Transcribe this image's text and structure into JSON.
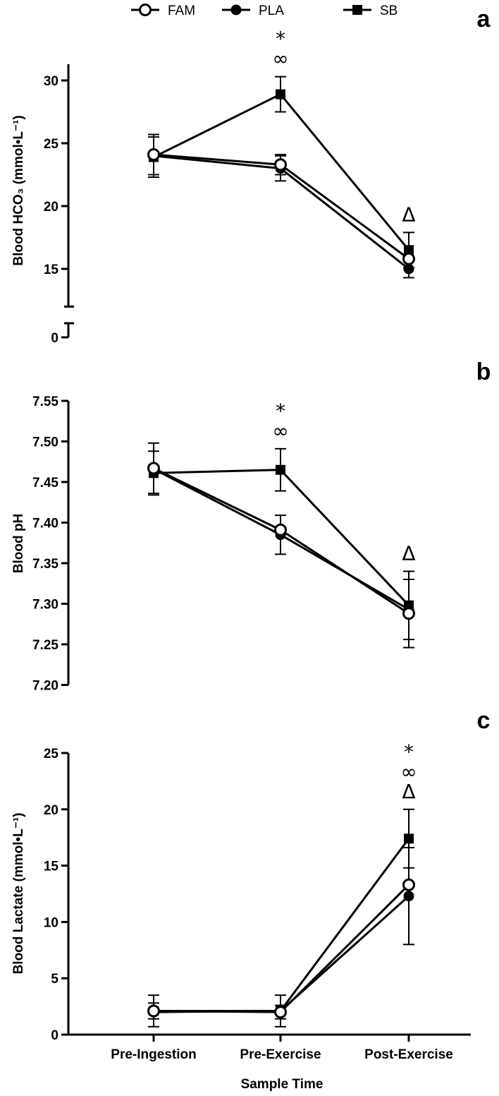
{
  "legend": [
    {
      "label": "FAM",
      "marker": "open-circle"
    },
    {
      "label": "PLA",
      "marker": "filled-circle"
    },
    {
      "label": "SB",
      "marker": "filled-square"
    }
  ],
  "xlabel": "Sample Time",
  "chart_data": [
    {
      "type": "line",
      "panel": "a",
      "ylabel": "Blood HCO₃ (mmol•L⁻¹)",
      "ylim": [
        0,
        32
      ],
      "axis_break": [
        2,
        12
      ],
      "yticks": [
        0,
        15,
        20,
        25,
        30
      ],
      "categories": [
        "Pre-Ingestion",
        "Pre-Exercise",
        "Post-Exercise"
      ],
      "series": [
        {
          "name": "FAM",
          "values": [
            24.1,
            23.3,
            15.8
          ],
          "errors": [
            1.6,
            0.8,
            0.0
          ]
        },
        {
          "name": "PLA",
          "values": [
            24.0,
            23.0,
            15.0
          ],
          "errors": [
            0.0,
            1.0,
            0.7
          ]
        },
        {
          "name": "SB",
          "values": [
            23.9,
            28.9,
            16.5
          ],
          "errors": [
            1.6,
            1.4,
            1.4
          ]
        }
      ],
      "annotations": [
        {
          "category": "Pre-Exercise",
          "symbols": [
            "*",
            "∞"
          ]
        },
        {
          "category": "Post-Exercise",
          "symbols": [
            "Δ"
          ]
        }
      ]
    },
    {
      "type": "line",
      "panel": "b",
      "ylabel": "Blood pH",
      "ylim": [
        7.2,
        7.55
      ],
      "yticks": [
        "7.20",
        "7.25",
        "7.30",
        "7.35",
        "7.40",
        "7.45",
        "7.50",
        "7.55"
      ],
      "categories": [
        "Pre-Ingestion",
        "Pre-Exercise",
        "Post-Exercise"
      ],
      "series": [
        {
          "name": "FAM",
          "values": [
            7.467,
            7.391,
            7.288
          ],
          "errors": [
            0.031,
            0.0,
            0.042
          ]
        },
        {
          "name": "PLA",
          "values": [
            7.466,
            7.385,
            7.293
          ],
          "errors": [
            0.0,
            0.024,
            0.0
          ]
        },
        {
          "name": "SB",
          "values": [
            7.461,
            7.465,
            7.298
          ],
          "errors": [
            0.027,
            0.026,
            0.042
          ]
        }
      ],
      "annotations": [
        {
          "category": "Pre-Exercise",
          "symbols": [
            "*",
            "∞"
          ]
        },
        {
          "category": "Post-Exercise",
          "symbols": [
            "Δ"
          ]
        }
      ]
    },
    {
      "type": "line",
      "panel": "c",
      "ylabel": "Blood Lactate (mmol•L⁻¹)",
      "ylim": [
        0,
        25
      ],
      "yticks": [
        0,
        5,
        10,
        15,
        20,
        25
      ],
      "categories": [
        "Pre-Ingestion",
        "Pre-Exercise",
        "Post-Exercise"
      ],
      "series": [
        {
          "name": "FAM",
          "values": [
            2.1,
            2.0,
            13.3
          ],
          "errors": [
            0.7,
            0.6,
            0.0
          ]
        },
        {
          "name": "PLA",
          "values": [
            2.0,
            2.1,
            12.3
          ],
          "errors": [
            0.0,
            0.0,
            4.3
          ]
        },
        {
          "name": "SB",
          "values": [
            2.1,
            2.1,
            17.4
          ],
          "errors": [
            1.4,
            1.4,
            2.6
          ]
        }
      ],
      "annotations": [
        {
          "category": "Post-Exercise",
          "symbols": [
            "*",
            "∞",
            "Δ"
          ]
        }
      ]
    }
  ]
}
